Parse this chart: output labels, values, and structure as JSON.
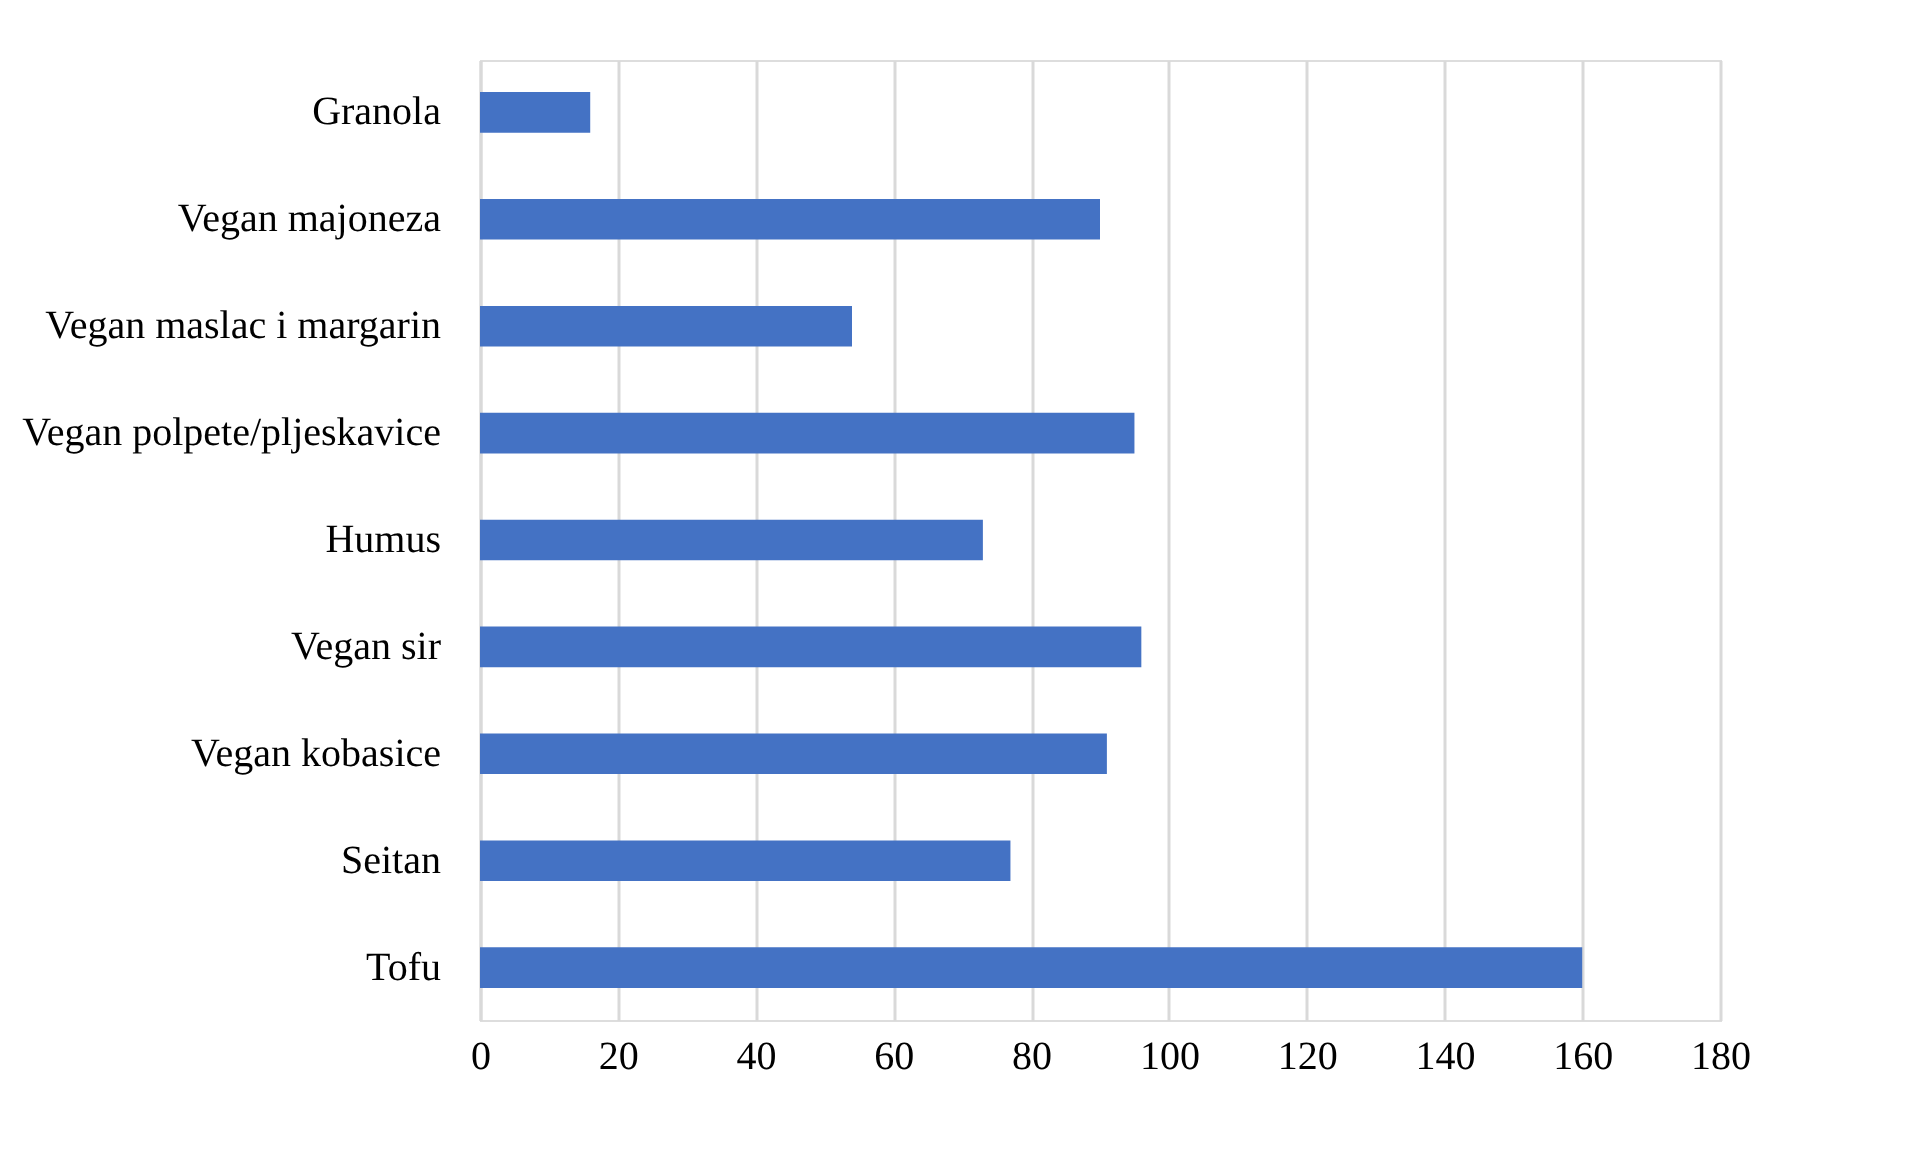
{
  "chart_data": {
    "type": "bar",
    "orientation": "horizontal",
    "categories": [
      "Granola",
      "Vegan majoneza",
      "Vegan maslac i margarin",
      "Vegan polpete/pljeskavice",
      "Humus",
      "Vegan sir",
      "Vegan kobasice",
      "Seitan",
      "Tofu"
    ],
    "values": [
      16,
      90,
      54,
      95,
      73,
      96,
      91,
      77,
      160
    ],
    "color": "#4472c4",
    "xlim": [
      0,
      180
    ],
    "xticks": [
      0,
      20,
      40,
      60,
      80,
      100,
      120,
      140,
      160,
      180
    ],
    "grid": "x"
  }
}
